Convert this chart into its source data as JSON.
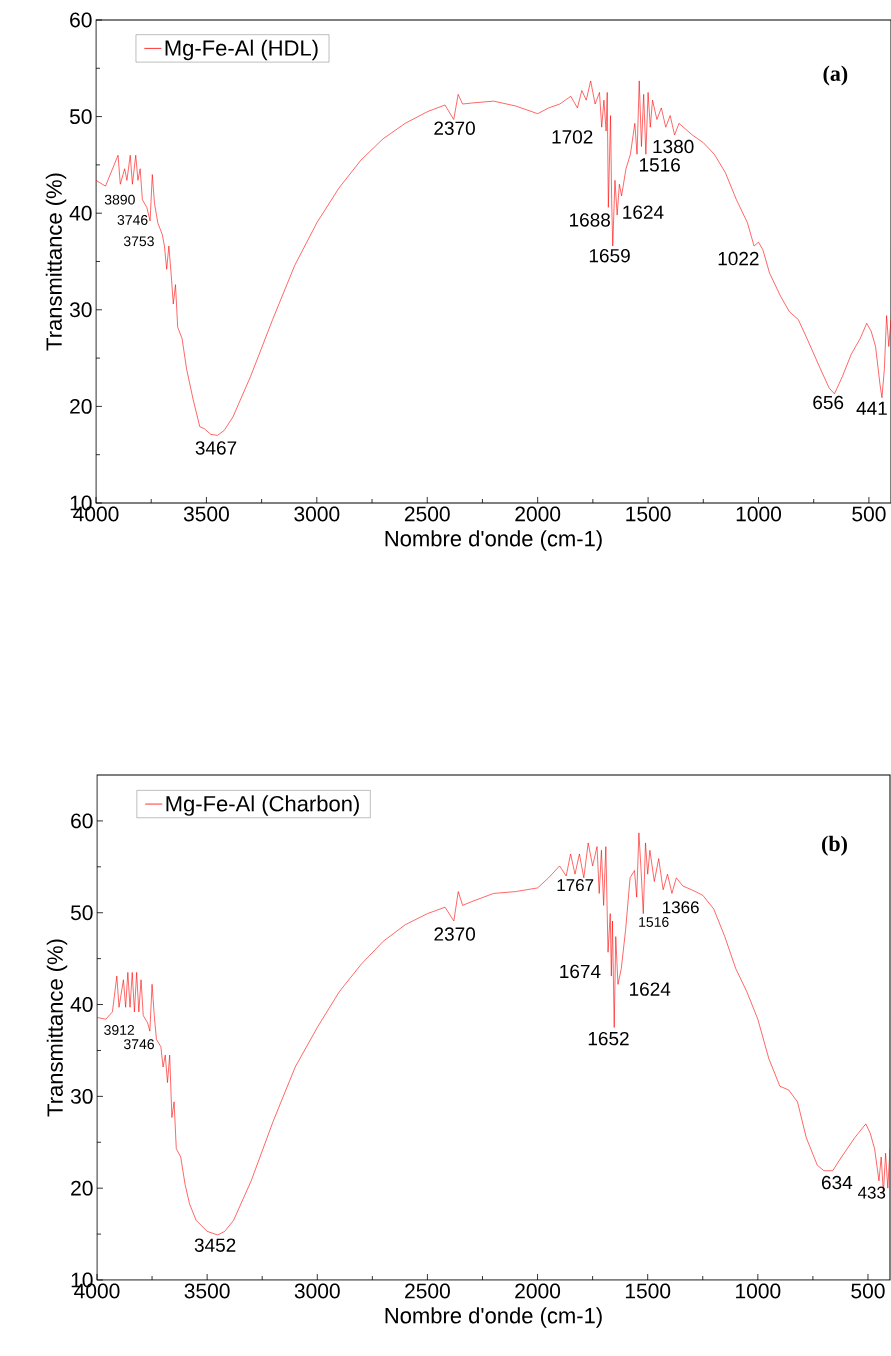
{
  "chart_data": [
    {
      "type": "line",
      "xlabel": "Nombre d'onde (cm-1)",
      "ylabel": "Transmittance (%)",
      "xlim": [
        4000,
        400
      ],
      "ylim": [
        10,
        60
      ],
      "xticks": [
        4000,
        3500,
        3000,
        2500,
        2000,
        1500,
        1000,
        500
      ],
      "yticks": [
        10,
        20,
        30,
        40,
        50,
        60
      ],
      "legend": "top left",
      "x": [
        4000,
        3957,
        3900,
        3890,
        3870,
        3860,
        3845,
        3835,
        3820,
        3810,
        3800,
        3790,
        3770,
        3755,
        3745,
        3735,
        3720,
        3700,
        3690,
        3680,
        3670,
        3660,
        3650,
        3640,
        3630,
        3610,
        3590,
        3560,
        3530,
        3510,
        3480,
        3450,
        3420,
        3380,
        3300,
        3200,
        3100,
        3000,
        2900,
        2800,
        2700,
        2600,
        2500,
        2420,
        2380,
        2360,
        2340,
        2300,
        2200,
        2100,
        2000,
        1950,
        1900,
        1850,
        1820,
        1800,
        1780,
        1760,
        1740,
        1720,
        1710,
        1700,
        1690,
        1685,
        1680,
        1670,
        1665,
        1660,
        1650,
        1640,
        1630,
        1620,
        1600,
        1580,
        1560,
        1550,
        1540,
        1530,
        1520,
        1510,
        1500,
        1490,
        1480,
        1460,
        1440,
        1420,
        1400,
        1380,
        1360,
        1300,
        1250,
        1200,
        1150,
        1100,
        1050,
        1020,
        1000,
        980,
        950,
        900,
        860,
        820,
        780,
        720,
        680,
        656,
        620,
        580,
        540,
        510,
        490,
        470,
        450,
        441,
        430,
        420,
        410,
        400
      ],
      "series": [
        {
          "name": "Mg-Fe-Al (HDL)",
          "color": "#ff0000",
          "values": [
            43.4,
            42.8,
            46.0,
            43.0,
            44.6,
            43.4,
            46.0,
            43.0,
            46.0,
            43.4,
            44.6,
            41.4,
            40.6,
            39.2,
            44.0,
            41.0,
            39.0,
            37.8,
            36.6,
            34.2,
            36.6,
            33.8,
            30.6,
            32.6,
            28.2,
            27.0,
            23.9,
            20.7,
            17.9,
            17.7,
            17.1,
            17.0,
            17.5,
            18.9,
            23.1,
            29.0,
            34.6,
            39.0,
            42.6,
            45.5,
            47.7,
            49.3,
            50.5,
            51.2,
            49.7,
            52.3,
            51.3,
            51.4,
            51.6,
            51.1,
            50.3,
            50.9,
            51.3,
            52.1,
            50.9,
            52.7,
            51.7,
            53.7,
            51.3,
            52.5,
            48.9,
            51.7,
            48.5,
            52.5,
            40.6,
            50.1,
            41.4,
            36.6,
            43.4,
            39.8,
            43.0,
            41.8,
            44.6,
            46.1,
            49.3,
            46.1,
            53.7,
            46.9,
            52.3,
            46.1,
            52.5,
            48.9,
            51.7,
            49.7,
            50.9,
            48.9,
            50.1,
            48.1,
            49.3,
            48.1,
            47.3,
            46.1,
            44.2,
            41.4,
            39.0,
            36.6,
            37.0,
            36.2,
            33.8,
            31.4,
            29.8,
            29.0,
            27.0,
            23.9,
            21.9,
            21.3,
            23.1,
            25.4,
            27.0,
            28.6,
            27.8,
            26.2,
            22.3,
            20.9,
            23.9,
            29.4,
            26.2,
            29.0
          ]
        }
      ],
      "annotations": [
        "(a)",
        "3890",
        "3746",
        "3753",
        "3467",
        "2370",
        "1702",
        "1380",
        "1516",
        "1688",
        "1624",
        "1659",
        "1022",
        "656",
        "441"
      ]
    },
    {
      "type": "line",
      "xlabel": "Nombre d'onde (cm-1)",
      "ylabel": "Transmittance (%)",
      "xlim": [
        4000,
        400
      ],
      "ylim": [
        10,
        65
      ],
      "xticks": [
        4000,
        3500,
        3000,
        2500,
        2000,
        1500,
        1000,
        500
      ],
      "yticks": [
        10,
        20,
        30,
        40,
        50,
        60
      ],
      "legend": "top left",
      "x": [
        4000,
        3960,
        3930,
        3910,
        3900,
        3880,
        3870,
        3860,
        3850,
        3840,
        3830,
        3820,
        3810,
        3800,
        3790,
        3770,
        3760,
        3750,
        3740,
        3730,
        3710,
        3700,
        3690,
        3680,
        3670,
        3660,
        3650,
        3640,
        3620,
        3600,
        3580,
        3550,
        3500,
        3452,
        3420,
        3380,
        3300,
        3200,
        3100,
        3000,
        2900,
        2800,
        2700,
        2600,
        2500,
        2420,
        2380,
        2360,
        2340,
        2300,
        2200,
        2100,
        2000,
        1950,
        1900,
        1870,
        1850,
        1830,
        1810,
        1790,
        1770,
        1750,
        1730,
        1720,
        1710,
        1700,
        1690,
        1680,
        1670,
        1665,
        1660,
        1652,
        1645,
        1635,
        1620,
        1600,
        1580,
        1560,
        1550,
        1540,
        1530,
        1520,
        1510,
        1500,
        1490,
        1470,
        1450,
        1430,
        1410,
        1390,
        1370,
        1340,
        1300,
        1250,
        1200,
        1150,
        1100,
        1050,
        1000,
        950,
        900,
        860,
        820,
        780,
        730,
        700,
        660,
        620,
        560,
        510,
        490,
        470,
        450,
        440,
        430,
        420,
        410,
        400
      ],
      "series": [
        {
          "name": "Mg-Fe-Al (Charbon)",
          "color": "#ff0000",
          "values": [
            38.6,
            38.4,
            39.2,
            43.1,
            39.7,
            42.7,
            39.7,
            43.5,
            39.7,
            43.5,
            39.2,
            43.5,
            39.2,
            42.7,
            38.8,
            38.0,
            37.1,
            42.2,
            38.8,
            36.2,
            35.4,
            33.2,
            34.5,
            31.5,
            34.5,
            27.7,
            29.4,
            24.3,
            23.4,
            20.4,
            18.3,
            16.5,
            15.3,
            14.9,
            15.3,
            16.5,
            20.8,
            27.3,
            33.2,
            37.5,
            41.4,
            44.4,
            46.9,
            48.7,
            49.9,
            50.6,
            49.1,
            52.3,
            50.8,
            51.2,
            52.1,
            52.3,
            52.7,
            53.8,
            55.1,
            54.0,
            56.4,
            54.2,
            56.4,
            53.8,
            57.6,
            55.1,
            57.2,
            52.1,
            56.8,
            50.8,
            57.2,
            45.7,
            49.9,
            43.1,
            49.1,
            37.5,
            47.4,
            42.2,
            43.9,
            48.2,
            53.8,
            54.6,
            51.7,
            58.7,
            54.6,
            49.9,
            57.6,
            54.2,
            56.8,
            53.4,
            55.9,
            52.5,
            54.2,
            52.1,
            53.8,
            52.9,
            52.5,
            51.9,
            50.4,
            47.4,
            43.9,
            41.4,
            38.4,
            34.1,
            31.1,
            30.7,
            29.4,
            25.5,
            22.5,
            21.9,
            21.9,
            23.4,
            25.5,
            27.0,
            26.0,
            24.3,
            20.8,
            23.4,
            19.5,
            23.8,
            20.0,
            24.3
          ]
        }
      ],
      "annotations": [
        "(b)",
        "3912",
        "3746",
        "3452",
        "2370",
        "1767",
        "1516",
        "1366",
        "1674",
        "1624",
        "1652",
        "634",
        "433"
      ]
    }
  ]
}
